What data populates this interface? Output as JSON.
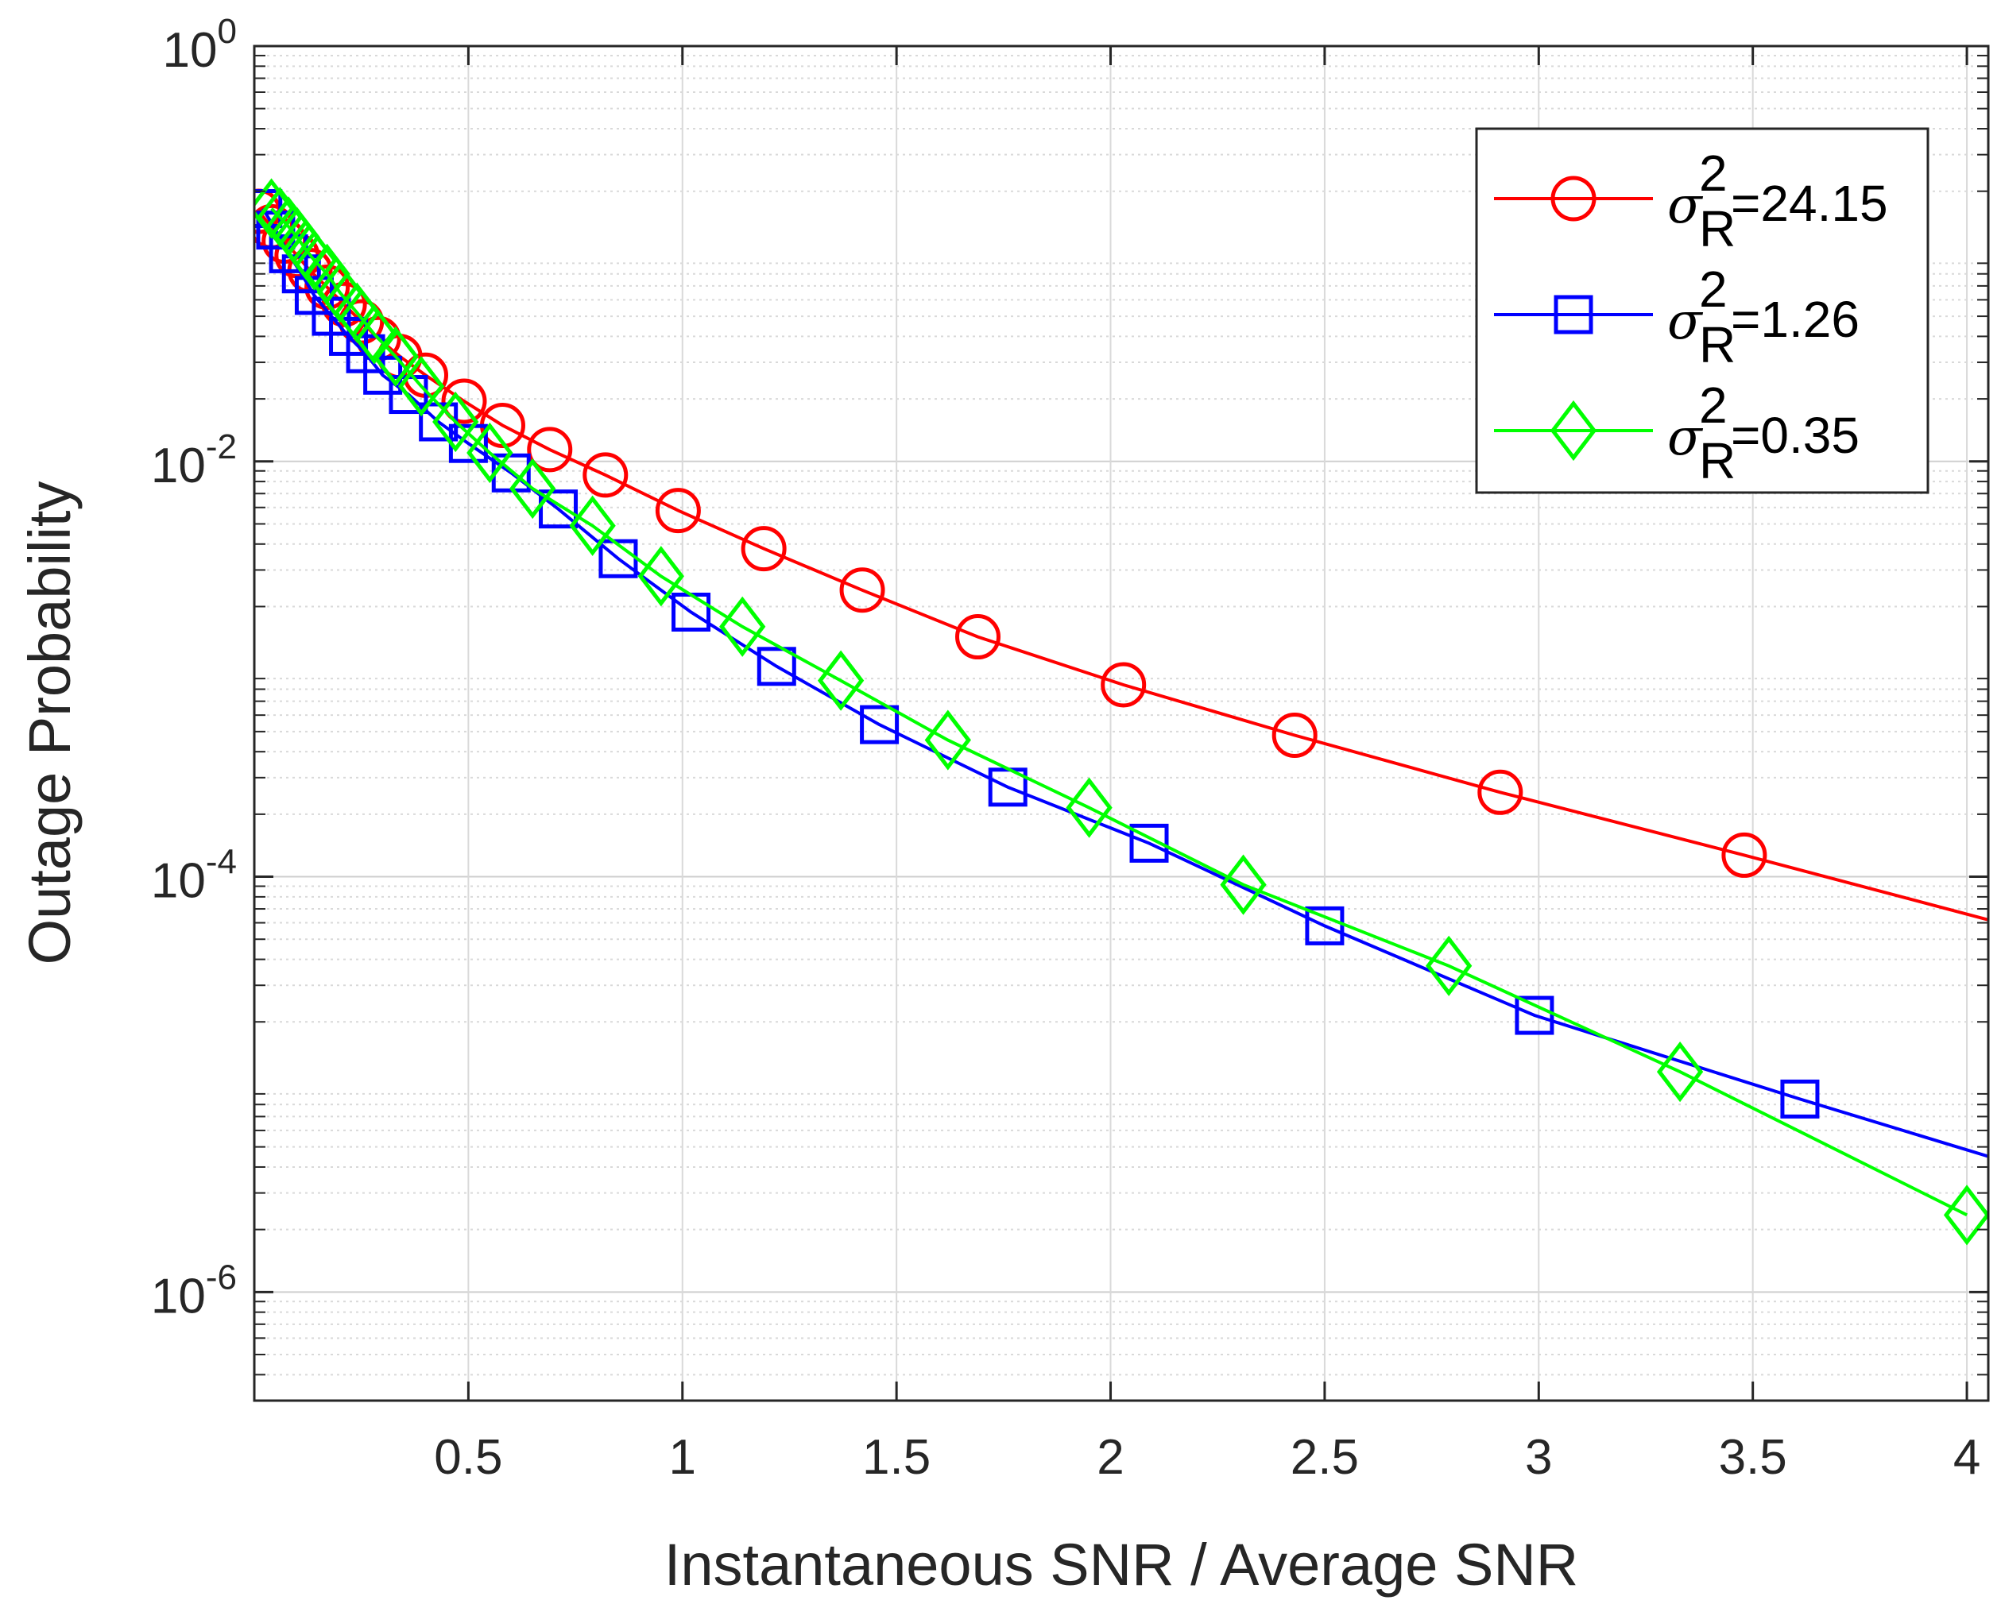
{
  "chart_data": {
    "type": "line",
    "title": "",
    "xlabel": "Instantaneous SNR / Average SNR",
    "ylabel": "Outage Probability",
    "xscale": "linear",
    "yscale": "log",
    "xlim": [
      0,
      4.05
    ],
    "ylim": [
      3e-07,
      1
    ],
    "x_ticks": [
      {
        "value": 0.5,
        "label": "0.5"
      },
      {
        "value": 1,
        "label": "1"
      },
      {
        "value": 1.5,
        "label": "1.5"
      },
      {
        "value": 2,
        "label": "2"
      },
      {
        "value": 2.5,
        "label": "2.5"
      },
      {
        "value": 3,
        "label": "3"
      },
      {
        "value": 3.5,
        "label": "3.5"
      },
      {
        "value": 4,
        "label": "4"
      }
    ],
    "y_ticks": [
      {
        "value": 1,
        "base": "10",
        "exp": "0"
      },
      {
        "value": 0.01,
        "base": "10",
        "exp": "-2"
      },
      {
        "value": 0.0001,
        "base": "10",
        "exp": "-4"
      },
      {
        "value": 1e-06,
        "base": "10",
        "exp": "-6"
      }
    ],
    "grid": true,
    "minor_grid": true,
    "legend_position": "top-right",
    "series": [
      {
        "legend_base": "σ",
        "legend_sup": "2",
        "legend_sub": "R",
        "legend_value": "=24.15",
        "color": "#ff0000",
        "marker": "circle",
        "x": [
          0.01,
          0.04,
          0.07,
          0.1,
          0.13,
          0.17,
          0.21,
          0.25,
          0.29,
          0.34,
          0.4,
          0.49,
          0.58,
          0.69,
          0.82,
          0.99,
          1.19,
          1.42,
          1.69,
          2.03,
          2.43,
          2.91,
          3.48,
          4.05
        ],
        "y": [
          0.16,
          0.135,
          0.115,
          0.098,
          0.083,
          0.069,
          0.057,
          0.047,
          0.039,
          0.032,
          0.026,
          0.0195,
          0.0149,
          0.0114,
          0.0086,
          0.0058,
          0.0038,
          0.0024,
          0.00143,
          0.00084,
          0.00048,
          0.000255,
          0.000127,
          6.2e-05
        ]
      },
      {
        "legend_base": "σ",
        "legend_sup": "2",
        "legend_sub": "R",
        "legend_value": "=1.26",
        "color": "#0000ff",
        "marker": "square",
        "x": [
          0.02,
          0.05,
          0.08,
          0.11,
          0.14,
          0.18,
          0.22,
          0.26,
          0.3,
          0.36,
          0.43,
          0.5,
          0.6,
          0.71,
          0.85,
          1.02,
          1.22,
          1.46,
          1.76,
          2.09,
          2.5,
          2.99,
          3.61,
          4.05
        ],
        "y": [
          0.165,
          0.13,
          0.1,
          0.08,
          0.063,
          0.05,
          0.04,
          0.033,
          0.026,
          0.021,
          0.0155,
          0.0122,
          0.0088,
          0.0059,
          0.0034,
          0.00188,
          0.00103,
          0.00054,
          0.00027,
          0.000145,
          5.8e-05,
          2.15e-05,
          8.5e-06,
          4.5e-06
        ]
      },
      {
        "legend_base": "σ",
        "legend_sup": "2",
        "legend_sub": "R",
        "legend_value": "=0.35",
        "color": "#00ff00",
        "marker": "diamond",
        "x": [
          0.04,
          0.06,
          0.08,
          0.1,
          0.12,
          0.14,
          0.17,
          0.2,
          0.24,
          0.28,
          0.33,
          0.39,
          0.47,
          0.55,
          0.65,
          0.79,
          0.95,
          1.14,
          1.37,
          1.62,
          1.95,
          2.31,
          2.79,
          3.33,
          4.0
        ],
        "y": [
          0.165,
          0.15,
          0.135,
          0.12,
          0.105,
          0.093,
          0.08,
          0.065,
          0.052,
          0.041,
          0.032,
          0.023,
          0.0155,
          0.011,
          0.0074,
          0.0049,
          0.0028,
          0.0016,
          0.00088,
          0.000455,
          0.000215,
          9.15e-05,
          3.72e-05,
          1.15e-05,
          2.35e-06
        ]
      }
    ]
  }
}
